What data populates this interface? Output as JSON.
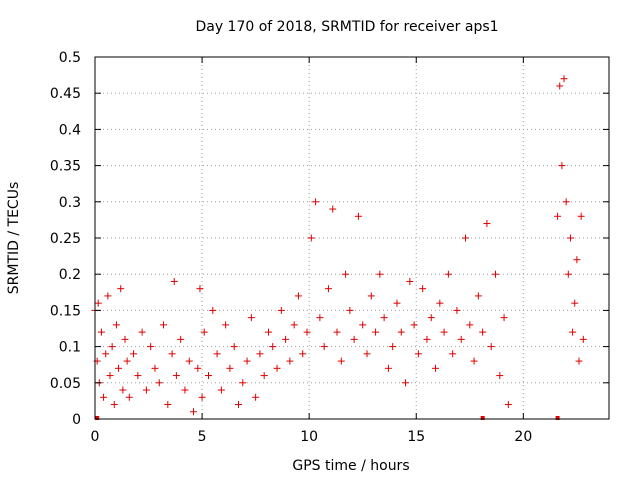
{
  "chart_data": {
    "type": "scatter",
    "title": "Day 170 of 2018, SRMTID for receiver aps1",
    "xlabel": "GPS time / hours",
    "ylabel": "SRMTID / TECUs",
    "xlim": [
      0,
      24
    ],
    "ylim": [
      0,
      0.5
    ],
    "x_ticks": [
      0,
      5,
      10,
      15,
      20
    ],
    "x_tick_labels": [
      "0",
      "5",
      "10",
      "15",
      "20"
    ],
    "y_ticks": [
      0,
      0.05,
      0.1,
      0.15,
      0.2,
      0.25,
      0.3,
      0.35,
      0.4,
      0.45,
      0.5
    ],
    "y_tick_labels": [
      "0",
      "0.05",
      "0.1",
      "0.15",
      "0.2",
      "0.25",
      "0.3",
      "0.35",
      "0.4",
      "0.45",
      "0.5"
    ],
    "grid": true,
    "marker": "+",
    "color": "#dd0000",
    "series": [
      {
        "name": "SRMTID",
        "x": [
          0.0,
          0.1,
          0.15,
          0.2,
          0.3,
          0.4,
          0.5,
          0.6,
          0.7,
          0.8,
          0.9,
          1.0,
          1.1,
          1.2,
          1.3,
          1.4,
          1.5,
          1.6,
          1.8,
          2.0,
          2.2,
          2.4,
          2.6,
          2.8,
          3.0,
          3.2,
          3.4,
          3.6,
          3.7,
          3.8,
          4.0,
          4.2,
          4.4,
          4.6,
          4.8,
          4.9,
          5.0,
          5.1,
          5.3,
          5.5,
          5.7,
          5.9,
          6.1,
          6.3,
          6.5,
          6.7,
          6.9,
          7.1,
          7.3,
          7.5,
          7.7,
          7.9,
          8.1,
          8.3,
          8.5,
          8.7,
          8.9,
          9.1,
          9.3,
          9.5,
          9.7,
          9.9,
          10.1,
          10.3,
          10.5,
          10.7,
          10.9,
          11.1,
          11.3,
          11.5,
          11.7,
          11.9,
          12.1,
          12.3,
          12.5,
          12.7,
          12.9,
          13.1,
          13.3,
          13.5,
          13.7,
          13.9,
          14.1,
          14.3,
          14.5,
          14.7,
          14.9,
          15.1,
          15.3,
          15.5,
          15.7,
          15.9,
          16.1,
          16.3,
          16.5,
          16.7,
          16.9,
          17.1,
          17.3,
          17.5,
          17.7,
          17.9,
          18.1,
          18.3,
          18.5,
          18.7,
          18.9,
          19.1,
          19.3,
          21.6,
          21.7,
          21.8,
          21.9,
          22.0,
          22.1,
          22.2,
          22.3,
          22.4,
          22.5,
          22.6,
          22.7,
          22.8
        ],
        "y": [
          0.15,
          0.08,
          0.16,
          0.05,
          0.12,
          0.03,
          0.09,
          0.17,
          0.06,
          0.1,
          0.02,
          0.13,
          0.07,
          0.18,
          0.04,
          0.11,
          0.08,
          0.03,
          0.09,
          0.06,
          0.12,
          0.04,
          0.1,
          0.07,
          0.05,
          0.13,
          0.02,
          0.09,
          0.19,
          0.06,
          0.11,
          0.04,
          0.08,
          0.01,
          0.07,
          0.18,
          0.03,
          0.12,
          0.06,
          0.15,
          0.09,
          0.04,
          0.13,
          0.07,
          0.1,
          0.02,
          0.05,
          0.08,
          0.14,
          0.03,
          0.09,
          0.06,
          0.12,
          0.1,
          0.07,
          0.15,
          0.11,
          0.08,
          0.13,
          0.17,
          0.09,
          0.12,
          0.25,
          0.3,
          0.14,
          0.1,
          0.18,
          0.29,
          0.12,
          0.08,
          0.2,
          0.15,
          0.11,
          0.28,
          0.13,
          0.09,
          0.17,
          0.12,
          0.2,
          0.14,
          0.07,
          0.1,
          0.16,
          0.12,
          0.05,
          0.19,
          0.13,
          0.09,
          0.18,
          0.11,
          0.14,
          0.07,
          0.16,
          0.12,
          0.2,
          0.09,
          0.15,
          0.11,
          0.25,
          0.13,
          0.08,
          0.17,
          0.12,
          0.27,
          0.1,
          0.2,
          0.06,
          0.14,
          0.02,
          0.28,
          0.46,
          0.35,
          0.47,
          0.3,
          0.2,
          0.25,
          0.12,
          0.16,
          0.22,
          0.08,
          0.28,
          0.11
        ],
        "zero_markers_x": [
          0.1,
          18.1,
          21.6
        ]
      }
    ]
  }
}
